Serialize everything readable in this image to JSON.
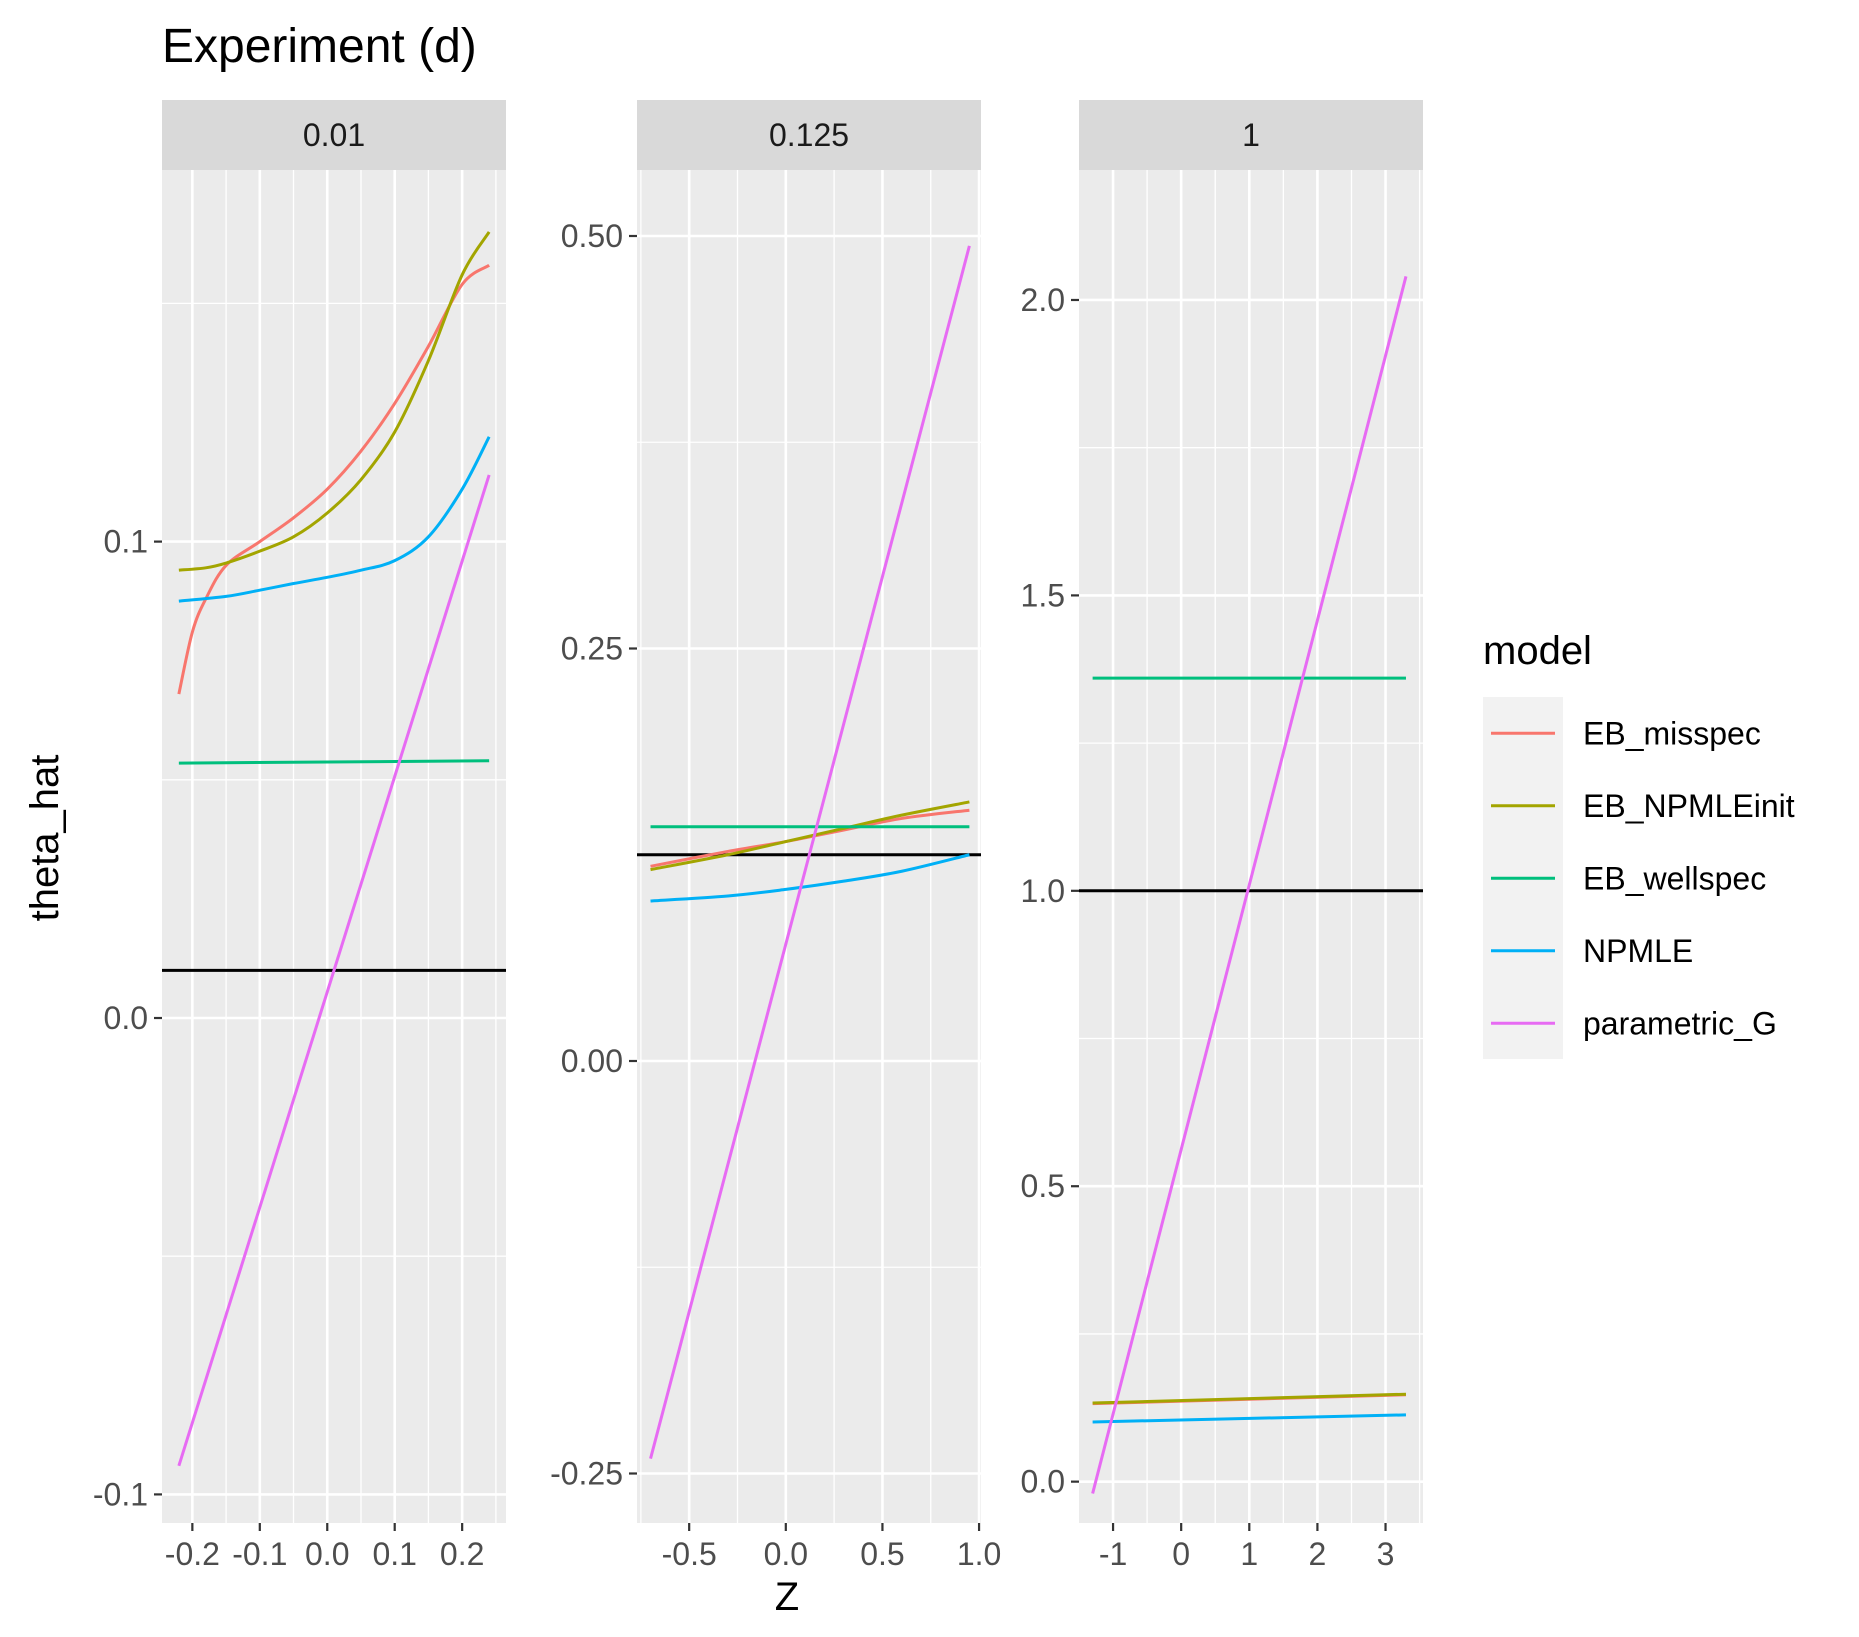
{
  "chart_data": {
    "type": "line",
    "title": "Experiment (d)",
    "xlabel": "Z",
    "ylabel": "theta_hat",
    "legend": {
      "title": "model",
      "position": "right",
      "entries": [
        {
          "name": "EB_misspec",
          "color": "#F8766D"
        },
        {
          "name": "EB_NPMLEinit",
          "color": "#A3A500"
        },
        {
          "name": "EB_wellspec",
          "color": "#00BF7D"
        },
        {
          "name": "NPMLE",
          "color": "#00B0F6"
        },
        {
          "name": "parametric_G",
          "color": "#E76BF3"
        }
      ]
    },
    "facets": [
      {
        "strip": "0.01",
        "xlim": [
          -0.245,
          0.265
        ],
        "ylim": [
          -0.106,
          0.178
        ],
        "x_ticks": [
          -0.2,
          -0.1,
          0.0,
          0.1,
          0.2
        ],
        "x_tick_labels": [
          "-0.2",
          "-0.1",
          "0.0",
          "0.1",
          "0.2"
        ],
        "y_ticks": [
          -0.1,
          0.0,
          0.1
        ],
        "y_tick_labels": [
          "-0.1",
          "0.0",
          "0.1"
        ],
        "hline": 0.01,
        "series": [
          {
            "name": "EB_misspec",
            "color": "#F8766D",
            "x": [
              -0.22,
              -0.2,
              -0.18,
              -0.15,
              -0.1,
              -0.05,
              0,
              0.05,
              0.1,
              0.15,
              0.2,
              0.24
            ],
            "y": [
              0.068,
              0.081,
              0.088,
              0.095,
              0.1,
              0.105,
              0.111,
              0.119,
              0.129,
              0.141,
              0.154,
              0.158
            ]
          },
          {
            "name": "EB_NPMLEinit",
            "color": "#A3A500",
            "x": [
              -0.22,
              -0.18,
              -0.15,
              -0.1,
              -0.05,
              0,
              0.05,
              0.1,
              0.15,
              0.2,
              0.24
            ],
            "y": [
              0.094,
              0.0945,
              0.0955,
              0.098,
              0.101,
              0.106,
              0.113,
              0.123,
              0.138,
              0.156,
              0.165
            ]
          },
          {
            "name": "EB_wellspec",
            "color": "#00BF7D",
            "x": [
              -0.22,
              0.24
            ],
            "y": [
              0.0535,
              0.054
            ]
          },
          {
            "name": "NPMLE",
            "color": "#00B0F6",
            "x": [
              -0.22,
              -0.15,
              -0.1,
              -0.05,
              0,
              0.05,
              0.1,
              0.15,
              0.2,
              0.24
            ],
            "y": [
              0.0875,
              0.0885,
              0.0898,
              0.0912,
              0.0925,
              0.094,
              0.096,
              0.101,
              0.111,
              0.122
            ]
          },
          {
            "name": "parametric_G",
            "color": "#E76BF3",
            "x": [
              -0.22,
              0.24
            ],
            "y": [
              -0.094,
              0.114
            ]
          }
        ]
      },
      {
        "strip": "0.125",
        "xlim": [
          -0.77,
          1.01
        ],
        "ylim": [
          -0.28,
          0.54
        ],
        "x_ticks": [
          -0.5,
          0.0,
          0.5,
          1.0
        ],
        "x_tick_labels": [
          "-0.5",
          "0.0",
          "0.5",
          "1.0"
        ],
        "y_ticks": [
          -0.25,
          0.0,
          0.25,
          0.5
        ],
        "y_tick_labels": [
          "-0.25",
          "0.00",
          "0.25",
          "0.50"
        ],
        "hline": 0.125,
        "series": [
          {
            "name": "EB_misspec",
            "color": "#F8766D",
            "x": [
              -0.7,
              -0.3,
              0.0,
              0.3,
              0.6,
              0.95
            ],
            "y": [
              0.118,
              0.127,
              0.133,
              0.14,
              0.147,
              0.152
            ]
          },
          {
            "name": "EB_NPMLEinit",
            "color": "#A3A500",
            "x": [
              -0.7,
              -0.3,
              0.0,
              0.3,
              0.6,
              0.95
            ],
            "y": [
              0.116,
              0.125,
              0.133,
              0.141,
              0.149,
              0.157
            ]
          },
          {
            "name": "EB_wellspec",
            "color": "#00BF7D",
            "x": [
              -0.7,
              0.95
            ],
            "y": [
              0.142,
              0.142
            ]
          },
          {
            "name": "NPMLE",
            "color": "#00B0F6",
            "x": [
              -0.7,
              -0.3,
              0.0,
              0.3,
              0.6,
              0.95
            ],
            "y": [
              0.097,
              0.1,
              0.104,
              0.109,
              0.115,
              0.125
            ]
          },
          {
            "name": "parametric_G",
            "color": "#E76BF3",
            "x": [
              -0.7,
              0.95
            ],
            "y": [
              -0.241,
              0.494
            ]
          }
        ]
      },
      {
        "strip": "1",
        "xlim": [
          -1.5,
          3.55
        ],
        "ylim": [
          -0.07,
          2.22
        ],
        "x_ticks": [
          -1,
          0,
          1,
          2,
          3
        ],
        "x_tick_labels": [
          "-1",
          "0",
          "1",
          "2",
          "3"
        ],
        "y_ticks": [
          0.0,
          0.5,
          1.0,
          1.5,
          2.0
        ],
        "y_tick_labels": [
          "0.0",
          "0.5",
          "1.0",
          "1.5",
          "2.0"
        ],
        "hline": 1.0,
        "series": [
          {
            "name": "EB_misspec",
            "color": "#F8766D",
            "x": [
              -1.3,
              3.3
            ],
            "y": [
              0.132,
              0.147
            ]
          },
          {
            "name": "EB_NPMLEinit",
            "color": "#A3A500",
            "x": [
              -1.3,
              3.3
            ],
            "y": [
              0.133,
              0.148
            ]
          },
          {
            "name": "EB_wellspec",
            "color": "#00BF7D",
            "x": [
              -1.3,
              3.3
            ],
            "y": [
              1.36,
              1.36
            ]
          },
          {
            "name": "NPMLE",
            "color": "#00B0F6",
            "x": [
              -1.3,
              3.3
            ],
            "y": [
              0.101,
              0.113
            ]
          },
          {
            "name": "parametric_G",
            "color": "#E76BF3",
            "x": [
              -1.3,
              3.3
            ],
            "y": [
              -0.02,
              2.04
            ]
          }
        ]
      }
    ]
  }
}
